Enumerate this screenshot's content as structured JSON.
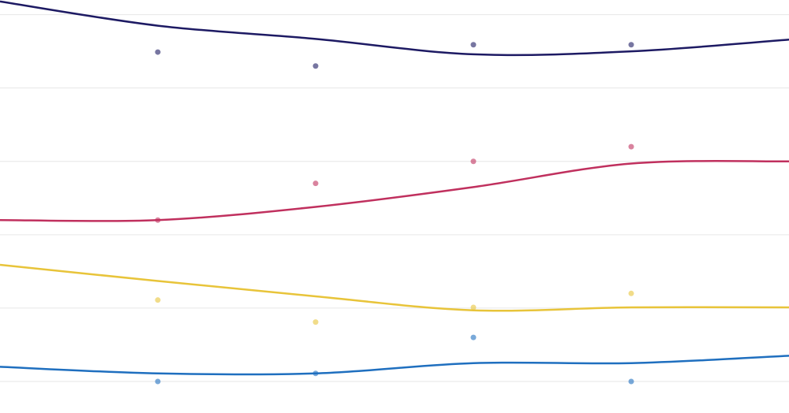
{
  "chart_data": {
    "type": "line",
    "x": [
      0,
      1,
      2,
      3,
      4,
      5
    ],
    "points_x": [
      1,
      2,
      3,
      4
    ],
    "xlim": [
      0,
      5
    ],
    "ylim": [
      -0.43,
      5.2
    ],
    "yticks": [
      0,
      1,
      2,
      3,
      4,
      5
    ],
    "grid": true,
    "smooth": true,
    "series": [
      {
        "color": "#1d1a63",
        "values": [
          5.18,
          4.85,
          4.67,
          4.46,
          4.5,
          4.66
        ],
        "points": [
          4.49,
          4.3,
          4.59,
          4.59
        ]
      },
      {
        "color": "#c0305e",
        "values": [
          2.2,
          2.2,
          2.38,
          2.65,
          2.97,
          3.0
        ],
        "points": [
          2.2,
          2.7,
          3.0,
          3.2
        ]
      },
      {
        "color": "#e8c43a",
        "values": [
          1.59,
          1.37,
          1.16,
          0.97,
          1.01,
          1.01
        ],
        "points": [
          1.11,
          0.81,
          1.01,
          1.2
        ]
      },
      {
        "color": "#1f6fbf",
        "values": [
          0.2,
          0.11,
          0.11,
          0.25,
          0.25,
          0.35
        ],
        "points": [
          0,
          0.11,
          0.6,
          0
        ]
      }
    ]
  }
}
